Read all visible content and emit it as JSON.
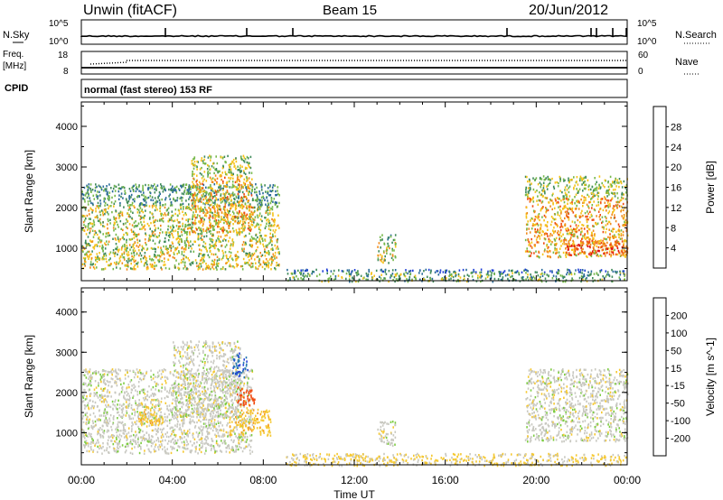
{
  "header": {
    "station": "Unwin (fitACF)",
    "beam": "Beam 15",
    "date": "20/Jun/2012"
  },
  "strip_labels": {
    "nsky": "N.Sky",
    "nsky_top": "10^5",
    "nsky_bottom": "10^0",
    "nsearch": "N.Search",
    "nsearch_top": "10^5",
    "nsearch_bottom": "10^0",
    "freq": "Freq.",
    "freq_unit": "[MHz]",
    "freq_top": "18",
    "freq_bottom": "8",
    "nave": "Nave",
    "nave_top": "60",
    "nave_bottom": "0",
    "cpid": "CPID",
    "cpid_text": "normal (fast stereo) 153 RF"
  },
  "xaxis": {
    "title": "Time UT",
    "ticks": [
      "00:00",
      "04:00",
      "08:00",
      "12:00",
      "16:00",
      "20:00",
      "00:00"
    ]
  },
  "colors": {
    "power": [
      "#1f3fd6",
      "#2a6b9a",
      "#3f8a5a",
      "#76b84a",
      "#f5c21a",
      "#f08a1a",
      "#ee4a10",
      "#e01010"
    ],
    "velocity": [
      "#e01010",
      "#f04a10",
      "#f5a020",
      "#f5c830",
      "#c8c8c0",
      "#7ccc40",
      "#2e8a3a",
      "#2a7ab0",
      "#1f3fd6"
    ]
  },
  "chart_data": [
    {
      "type": "heatmap",
      "title": "Power",
      "xlabel": "",
      "ylabel": "Slant Range [km]",
      "xlim_hours": [
        0,
        24
      ],
      "ylim": [
        200,
        4600
      ],
      "yticks": [
        1000,
        2000,
        3000,
        4000
      ],
      "colorbar": {
        "label": "Power [dB]",
        "ticks": [
          4,
          8,
          12,
          16,
          20,
          24,
          28
        ],
        "range": [
          0,
          32
        ]
      },
      "regions": [
        {
          "t_start": 0.0,
          "t_end": 8.7,
          "range_min": 500,
          "range_max": 2600,
          "dominant_value": 16
        },
        {
          "t_start": 4.8,
          "t_end": 7.5,
          "range_min": 1400,
          "range_max": 3300,
          "dominant_value": 20
        },
        {
          "t_start": 13.0,
          "t_end": 13.8,
          "range_min": 650,
          "range_max": 1350,
          "dominant_value": 16
        },
        {
          "t_start": 9.0,
          "t_end": 24.0,
          "range_min": 200,
          "range_max": 500,
          "dominant_value": 12
        },
        {
          "t_start": 19.5,
          "t_end": 24.0,
          "range_min": 800,
          "range_max": 2800,
          "dominant_value": 20
        },
        {
          "t_start": 21.3,
          "t_end": 24.0,
          "range_min": 850,
          "range_max": 1200,
          "dominant_value": 28
        }
      ]
    },
    {
      "type": "heatmap",
      "title": "Velocity",
      "xlabel": "Time UT",
      "ylabel": "Slant Range [km]",
      "xlim_hours": [
        0,
        24
      ],
      "ylim": [
        200,
        4600
      ],
      "yticks": [
        1000,
        2000,
        3000,
        4000
      ],
      "colorbar": {
        "label": "Velocity [m s^-1]",
        "ticks": [
          -200,
          -100,
          -50,
          -15,
          15,
          50,
          100,
          200
        ],
        "range": [
          -250,
          250
        ]
      },
      "regions": [
        {
          "t_start": 0.0,
          "t_end": 7.5,
          "range_min": 500,
          "range_max": 2600,
          "dominant_value": 0
        },
        {
          "t_start": 4.0,
          "t_end": 7.0,
          "range_min": 1400,
          "range_max": 3300,
          "dominant_value": 0
        },
        {
          "t_start": 6.6,
          "t_end": 7.3,
          "range_min": 2400,
          "range_max": 3000,
          "dominant_value": 200
        },
        {
          "t_start": 6.8,
          "t_end": 7.6,
          "range_min": 1700,
          "range_max": 2200,
          "dominant_value": -120
        },
        {
          "t_start": 6.5,
          "t_end": 8.3,
          "range_min": 950,
          "range_max": 1600,
          "dominant_value": -40
        },
        {
          "t_start": 2.5,
          "t_end": 3.6,
          "range_min": 1200,
          "range_max": 1700,
          "dominant_value": -40
        },
        {
          "t_start": 13.0,
          "t_end": 13.8,
          "range_min": 700,
          "range_max": 1300,
          "dominant_value": 0
        },
        {
          "t_start": 9.0,
          "t_end": 24.0,
          "range_min": 200,
          "range_max": 500,
          "dominant_value": -20
        },
        {
          "t_start": 19.5,
          "t_end": 24.0,
          "range_min": 800,
          "range_max": 2600,
          "dominant_value": 0
        }
      ]
    }
  ]
}
